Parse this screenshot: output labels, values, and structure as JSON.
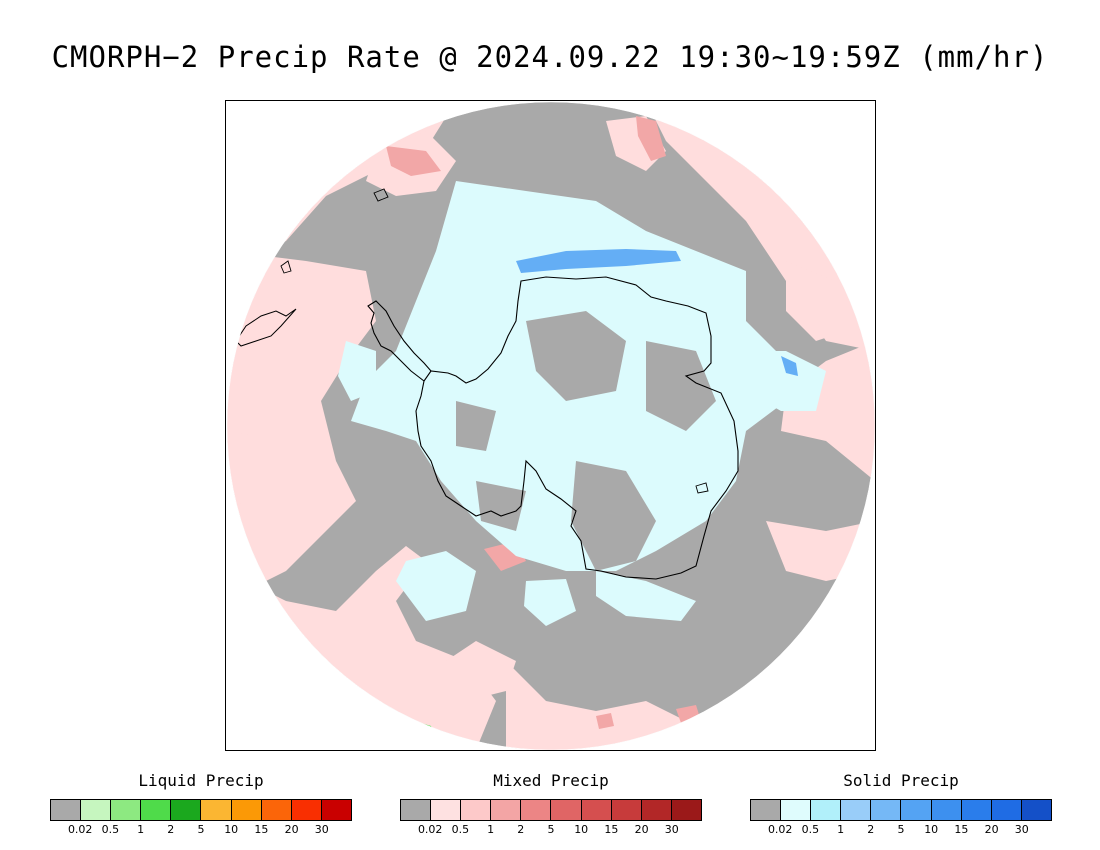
{
  "title": "CMORPH−2 Precip Rate @ 2024.09.22 19:30~19:59Z (mm/hr)",
  "map": {
    "projection": "south-polar-stereographic",
    "region": "Antarctica",
    "colors": {
      "no_precip_gray": "#a9a9a9",
      "mixed_light": "#ffdddd",
      "mixed_mid": "#f2a7a7",
      "solid_light": "#dcfbfd",
      "solid_blue": "#64aef5",
      "liquid_green": "#3fe03f",
      "coastline": "#000000"
    }
  },
  "legends": [
    {
      "title": "Liquid Precip",
      "colors": [
        "#a9a9a9",
        "#c6f6bf",
        "#8de981",
        "#4fdb4a",
        "#1ba81e",
        "#fbb632",
        "#fb9906",
        "#fb6509",
        "#f92f01",
        "#c90000"
      ],
      "ticks": [
        "0.02",
        "0.5",
        "1",
        "2",
        "5",
        "10",
        "15",
        "20",
        "30"
      ]
    },
    {
      "title": "Mixed Precip",
      "colors": [
        "#a9a9a9",
        "#fee1e1",
        "#fdc9c9",
        "#f3a5a5",
        "#ec8585",
        "#e06565",
        "#d54f4f",
        "#c73b3b",
        "#b22727",
        "#9b1919"
      ],
      "ticks": [
        "0.02",
        "0.5",
        "1",
        "2",
        "5",
        "10",
        "15",
        "20",
        "30"
      ]
    },
    {
      "title": "Solid Precip",
      "colors": [
        "#a9a9a9",
        "#dffcfd",
        "#b1f0fa",
        "#99cdf9",
        "#75b8f6",
        "#54a3f3",
        "#3d90ef",
        "#2a7deb",
        "#1f6ce4",
        "#1450c8"
      ],
      "ticks": [
        "0.02",
        "0.5",
        "1",
        "2",
        "5",
        "10",
        "15",
        "20",
        "30"
      ]
    }
  ]
}
